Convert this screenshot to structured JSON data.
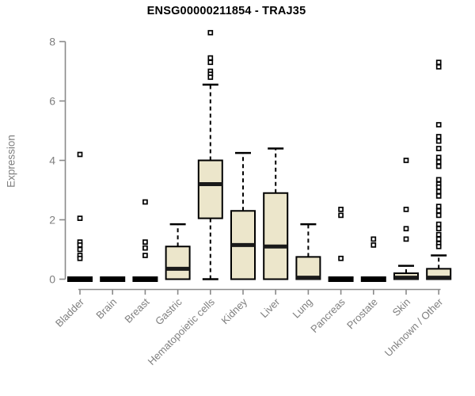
{
  "title": "ENSG00000211854 - TRAJ35",
  "colors": {
    "box_fill": "#ECE6CB",
    "box_border": "#000000",
    "median_color": "#1A1A1A",
    "axis_gray": "#8A8A8A",
    "label_gray": "#7F7F7F",
    "title_color": "#000000",
    "background": "#FFFFFF"
  },
  "chart_data": {
    "type": "boxplot",
    "title": "ENSG00000211854 - TRAJ35",
    "xlabel": "",
    "ylabel": "Expression",
    "ylim": [
      0,
      8
    ],
    "yticks": [
      0,
      2,
      4,
      6,
      8
    ],
    "grid": false,
    "legend": "none",
    "categories": [
      "Bladder",
      "Brain",
      "Breast",
      "Gastric",
      "Hematopoietic cells",
      "Kidney",
      "Liver",
      "Lung",
      "Pancreas",
      "Prostate",
      "Skin",
      "Unknown / Other"
    ],
    "series": [
      {
        "label": "Bladder",
        "flat": true,
        "q1": 0,
        "median": 0,
        "q3": 0,
        "whisker_low": 0,
        "whisker_high": 0,
        "outliers": [
          4.2,
          2.05,
          1.25,
          1.15,
          1.0,
          0.8,
          0.7
        ]
      },
      {
        "label": "Brain",
        "flat": true,
        "q1": 0,
        "median": 0,
        "q3": 0,
        "whisker_low": 0,
        "whisker_high": 0,
        "outliers": []
      },
      {
        "label": "Breast",
        "flat": true,
        "q1": 0,
        "median": 0,
        "q3": 0,
        "whisker_low": 0,
        "whisker_high": 0,
        "outliers": [
          2.6,
          1.25,
          1.05,
          0.8
        ]
      },
      {
        "label": "Gastric",
        "flat": false,
        "q1": 0,
        "median": 0.35,
        "q3": 1.1,
        "whisker_low": 0,
        "whisker_high": 1.85,
        "outliers": []
      },
      {
        "label": "Hematopoietic cells",
        "flat": false,
        "q1": 2.05,
        "median": 3.2,
        "q3": 4.0,
        "whisker_low": 0,
        "whisker_high": 6.55,
        "outliers": [
          8.3,
          7.45,
          7.3,
          7.0,
          6.9,
          6.8
        ]
      },
      {
        "label": "Kidney",
        "flat": false,
        "q1": 0,
        "median": 1.15,
        "q3": 2.3,
        "whisker_low": 0,
        "whisker_high": 4.25,
        "outliers": []
      },
      {
        "label": "Liver",
        "flat": false,
        "q1": 0,
        "median": 1.1,
        "q3": 2.9,
        "whisker_low": 0,
        "whisker_high": 4.4,
        "outliers": []
      },
      {
        "label": "Lung",
        "flat": false,
        "q1": 0,
        "median": 0.05,
        "q3": 0.75,
        "whisker_low": 0,
        "whisker_high": 1.85,
        "outliers": []
      },
      {
        "label": "Pancreas",
        "flat": true,
        "q1": 0,
        "median": 0,
        "q3": 0,
        "whisker_low": 0,
        "whisker_high": 0,
        "outliers": [
          2.35,
          2.15,
          0.7
        ]
      },
      {
        "label": "Prostate",
        "flat": true,
        "q1": 0,
        "median": 0,
        "q3": 0,
        "whisker_low": 0,
        "whisker_high": 0,
        "outliers": [
          1.35,
          1.15
        ]
      },
      {
        "label": "Skin",
        "flat": false,
        "q1": 0,
        "median": 0.05,
        "q3": 0.2,
        "whisker_low": 0,
        "whisker_high": 0.45,
        "outliers": [
          4.0,
          2.35,
          1.7,
          1.35
        ]
      },
      {
        "label": "Unknown / Other",
        "flat": false,
        "q1": 0,
        "median": 0.05,
        "q3": 0.35,
        "whisker_low": 0,
        "whisker_high": 0.8,
        "outliers": [
          7.3,
          7.15,
          5.2,
          4.8,
          4.65,
          4.4,
          4.1,
          3.95,
          3.8,
          3.35,
          3.2,
          3.1,
          2.95,
          2.8,
          2.45,
          2.3,
          2.15,
          1.85,
          1.7,
          1.5,
          1.35,
          1.2,
          1.1
        ]
      }
    ]
  }
}
